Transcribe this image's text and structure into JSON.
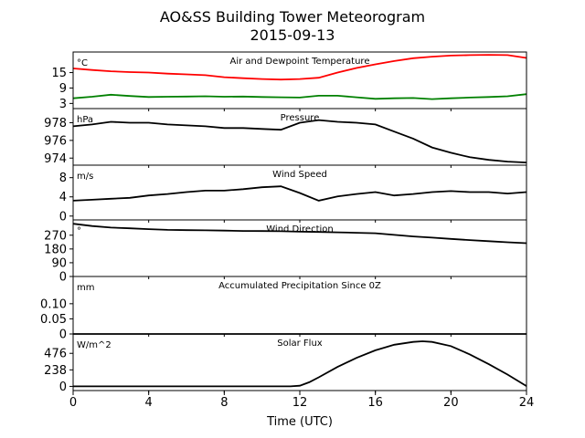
{
  "title_line1": "AO&SS Building Tower Meteorogram",
  "title_line2": "2015-09-13",
  "xlabel": "Time (UTC)",
  "x_ticks": [
    "0",
    "4",
    "8",
    "12",
    "16",
    "20",
    "24"
  ],
  "chart_data": [
    {
      "type": "line",
      "title": "Air and Dewpoint Temperature",
      "unit": "°C",
      "ylim": [
        1,
        23
      ],
      "yticks": [
        15,
        9,
        3
      ],
      "x": [
        0,
        1,
        2,
        3,
        4,
        5,
        6,
        7,
        8,
        9,
        10,
        11,
        12,
        13,
        14,
        15,
        16,
        17,
        18,
        19,
        20,
        21,
        22,
        23,
        24
      ],
      "series": [
        {
          "color": "#ff0000",
          "values": [
            16.6,
            16.0,
            15.5,
            15.2,
            15.0,
            14.6,
            14.3,
            14.0,
            13.2,
            12.8,
            12.5,
            12.3,
            12.5,
            13.0,
            15.0,
            16.8,
            18.2,
            19.5,
            20.6,
            21.2,
            21.6,
            21.8,
            21.9,
            21.8,
            20.7
          ]
        },
        {
          "color": "#008000",
          "values": [
            5.0,
            5.6,
            6.4,
            5.9,
            5.5,
            5.6,
            5.7,
            5.8,
            5.6,
            5.7,
            5.5,
            5.4,
            5.3,
            6.0,
            6.0,
            5.4,
            4.8,
            5.0,
            5.1,
            4.7,
            5.0,
            5.3,
            5.5,
            5.8,
            6.6
          ]
        }
      ]
    },
    {
      "type": "line",
      "title": "Pressure",
      "unit": "hPa",
      "ylim": [
        973.2,
        979.6
      ],
      "yticks": [
        978,
        976,
        974
      ],
      "x": [
        0,
        1,
        2,
        3,
        4,
        5,
        6,
        7,
        8,
        9,
        10,
        11,
        12,
        13,
        14,
        15,
        16,
        17,
        18,
        19,
        20,
        21,
        22,
        23,
        24
      ],
      "series": [
        {
          "color": "#000000",
          "values": [
            977.6,
            977.8,
            978.1,
            978.0,
            978.0,
            977.8,
            977.7,
            977.6,
            977.4,
            977.4,
            977.3,
            977.2,
            978.0,
            978.3,
            978.1,
            978.0,
            977.8,
            977.0,
            976.2,
            975.2,
            974.6,
            974.1,
            973.8,
            973.6,
            973.5
          ]
        }
      ]
    },
    {
      "type": "line",
      "title": "Wind Speed",
      "unit": "m/s",
      "ylim": [
        -0.8,
        10.6
      ],
      "yticks": [
        8,
        4,
        0
      ],
      "x": [
        0,
        1,
        2,
        3,
        4,
        5,
        6,
        7,
        8,
        9,
        10,
        11,
        12,
        13,
        14,
        15,
        16,
        17,
        18,
        19,
        20,
        21,
        22,
        23,
        24
      ],
      "series": [
        {
          "color": "#000000",
          "values": [
            3.2,
            3.4,
            3.6,
            3.8,
            4.3,
            4.6,
            5.0,
            5.3,
            5.3,
            5.6,
            6.0,
            6.2,
            4.8,
            3.2,
            4.1,
            4.6,
            5.0,
            4.3,
            4.6,
            5.0,
            5.2,
            5.0,
            5.0,
            4.7,
            5.0
          ]
        }
      ]
    },
    {
      "type": "line",
      "title": "Wind Direction",
      "unit": "°",
      "ylim": [
        0,
        370
      ],
      "yticks": [
        270,
        180,
        90,
        0
      ],
      "x": [
        0,
        1,
        2,
        3,
        4,
        5,
        6,
        7,
        8,
        9,
        10,
        11,
        12,
        13,
        14,
        15,
        16,
        17,
        18,
        19,
        20,
        21,
        22,
        23,
        24
      ],
      "series": [
        {
          "color": "#000000",
          "values": [
            345,
            330,
            320,
            315,
            310,
            305,
            303,
            302,
            300,
            298,
            297,
            296,
            293,
            291,
            289,
            286,
            283,
            272,
            262,
            254,
            246,
            238,
            231,
            224,
            218
          ]
        }
      ]
    },
    {
      "type": "line",
      "title": "Accumulated Precipitation Since 0Z",
      "unit": "mm",
      "ylim": [
        0,
        0.19
      ],
      "yticks": [
        0.1,
        0.05,
        0.0
      ],
      "x": [
        0,
        24
      ],
      "series": [
        {
          "color": "#000000",
          "values": [
            0,
            0
          ]
        }
      ]
    },
    {
      "type": "line",
      "title": "Solar Flux",
      "unit": "W/m^2",
      "ylim": [
        -60,
        755
      ],
      "yticks": [
        476,
        238,
        0
      ],
      "x": [
        0,
        11.5,
        12,
        12.5,
        13,
        14,
        15,
        16,
        17,
        18,
        18.5,
        19,
        20,
        21,
        22,
        23,
        24
      ],
      "series": [
        {
          "color": "#000000",
          "values": [
            0,
            0,
            10,
            60,
            130,
            280,
            410,
            520,
            600,
            640,
            650,
            640,
            580,
            460,
            320,
            170,
            5
          ]
        }
      ]
    }
  ]
}
